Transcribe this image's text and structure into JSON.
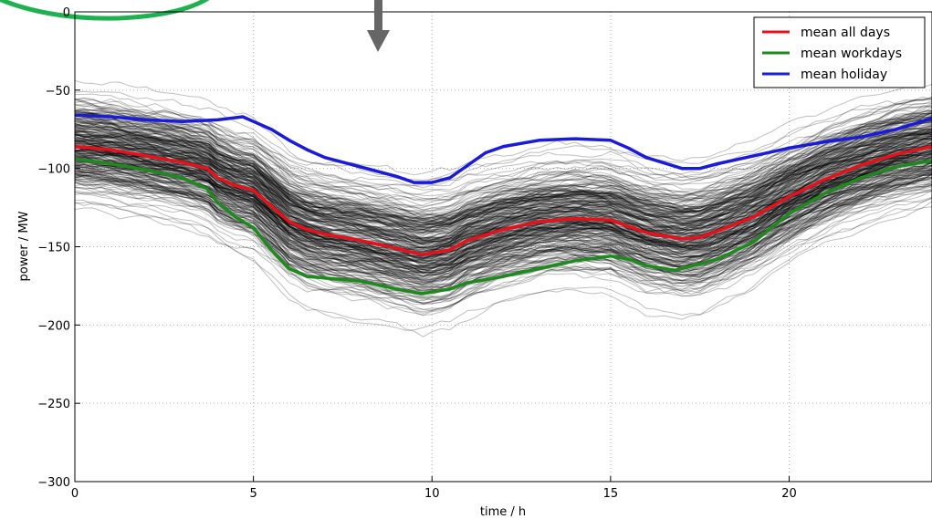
{
  "chart_data": {
    "type": "line",
    "title": "",
    "xlabel": "time / h",
    "ylabel": "power / MW",
    "xlim": [
      0,
      24
    ],
    "ylim": [
      -300,
      0
    ],
    "xticks": [
      0,
      5,
      10,
      15,
      20
    ],
    "yticks": [
      0,
      -50,
      -100,
      -150,
      -200,
      -250,
      -300
    ],
    "grid": true,
    "legend_position": "top-right",
    "background_traces": {
      "description_color": "#000000",
      "count": 300,
      "opacity": 0.25
    },
    "series": [
      {
        "name": "mean all days",
        "color": "#e8101a",
        "x": [
          0,
          1,
          2,
          3,
          3.7,
          4,
          4.5,
          5,
          5.5,
          6,
          6.5,
          7,
          8,
          9,
          9.7,
          10,
          10.5,
          11,
          12,
          13,
          14,
          15,
          15.5,
          16,
          17,
          17.5,
          18,
          19,
          20,
          21,
          22,
          23,
          24
        ],
        "y": [
          -86,
          -88,
          -92,
          -96,
          -100,
          -106,
          -111,
          -114,
          -124,
          -134,
          -139,
          -142,
          -146,
          -151,
          -155,
          -154,
          -152,
          -146,
          -139,
          -134,
          -132,
          -133,
          -137,
          -141,
          -145,
          -144,
          -140,
          -131,
          -118,
          -107,
          -98,
          -91,
          -86
        ]
      },
      {
        "name": "mean workdays",
        "color": "#1e8a1e",
        "x": [
          0,
          1,
          2,
          3,
          3.7,
          4,
          4.5,
          5,
          5.5,
          6,
          6.5,
          7,
          8,
          9,
          9.7,
          10,
          10.5,
          11,
          12,
          13,
          14,
          15,
          15.5,
          16,
          16.8,
          17.5,
          18,
          19,
          20,
          21,
          22,
          23,
          24
        ],
        "y": [
          -94,
          -97,
          -101,
          -106,
          -113,
          -122,
          -131,
          -138,
          -152,
          -164,
          -169,
          -170,
          -172,
          -177,
          -180,
          -179,
          -177,
          -173,
          -169,
          -164,
          -159,
          -156,
          -158,
          -162,
          -165,
          -161,
          -158,
          -147,
          -129,
          -116,
          -106,
          -99,
          -95
        ]
      },
      {
        "name": "mean holiday",
        "color": "#1a1adb",
        "x": [
          0,
          1,
          2,
          3,
          4,
          4.7,
          5.5,
          6,
          6.5,
          7,
          8,
          9,
          9.5,
          10,
          10.5,
          11,
          11.5,
          12,
          13,
          14,
          15,
          15.5,
          16,
          17,
          17.5,
          18,
          19,
          20,
          21,
          22,
          23,
          24
        ],
        "y": [
          -66,
          -67,
          -69,
          -70,
          -69,
          -67,
          -75,
          -82,
          -88,
          -93,
          -99,
          -105,
          -109,
          -109,
          -106,
          -98,
          -90,
          -86,
          -82,
          -81,
          -82,
          -87,
          -93,
          -100,
          -100,
          -97,
          -92,
          -87,
          -83,
          -80,
          -75,
          -68
        ]
      }
    ]
  },
  "annotations": {
    "arrow_color": "#666666",
    "ellipse_color": "#1fb04f"
  }
}
